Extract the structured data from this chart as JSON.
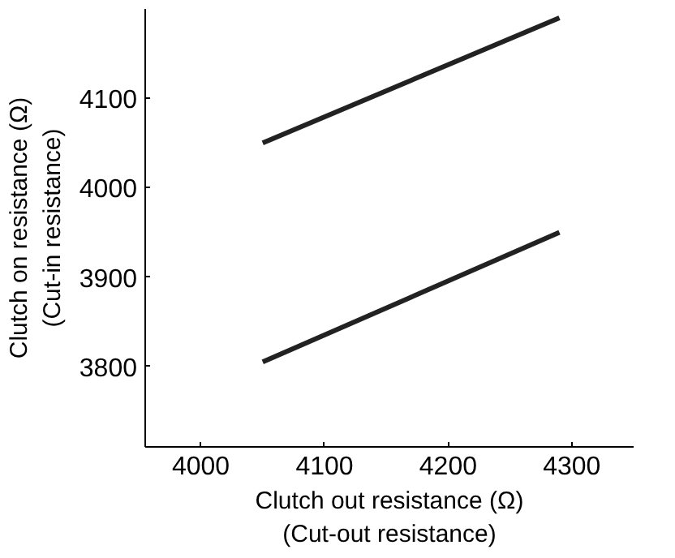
{
  "chart_data": {
    "type": "line",
    "xlabel": "Clutch out resistance (Ω)\n(Cut-out resistance)",
    "ylabel": "Clutch on resistance (Ω)\n(Cut-in resistance)",
    "x": [
      4050,
      4290
    ],
    "series": [
      {
        "color": "#222222",
        "values": [
          4050,
          4190
        ]
      },
      {
        "color": "#222222",
        "values": [
          3805,
          3950
        ]
      }
    ],
    "xlim": [
      3955,
      4350
    ],
    "xticks": [
      4000,
      4100,
      4200,
      4300
    ],
    "ylim": [
      3710,
      4200
    ],
    "yticks": [
      3800,
      3900,
      4000,
      4100
    ],
    "grid": false,
    "marker": "none",
    "line_style": "solid"
  }
}
